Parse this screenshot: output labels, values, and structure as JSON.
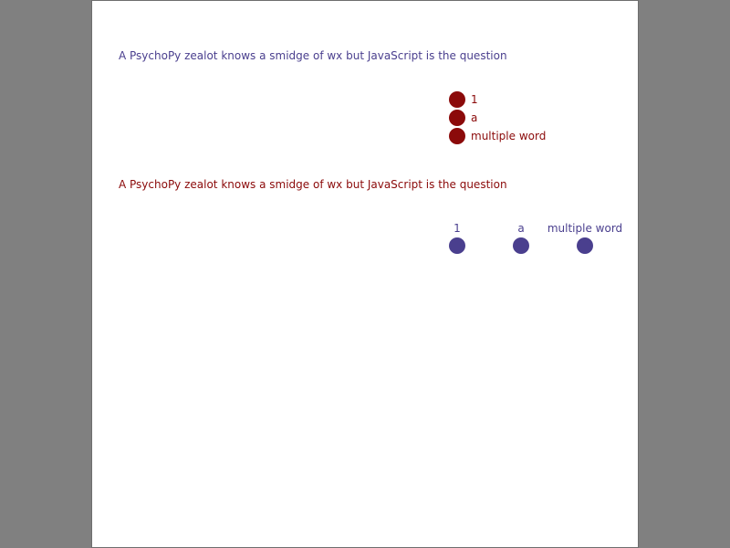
{
  "colors": {
    "background": "#808080",
    "window": "#ffffff",
    "blue": "#4a3f8e",
    "red": "#8b0a0a"
  },
  "question_1": {
    "text": "A PsychoPy zealot knows a smidge of wx but JavaScript is the question",
    "options": [
      "1",
      "a",
      "multiple word"
    ]
  },
  "question_2": {
    "text": "A PsychoPy zealot knows a smidge of wx but JavaScript is the question",
    "options": [
      "1",
      "a",
      "multiple word"
    ]
  }
}
